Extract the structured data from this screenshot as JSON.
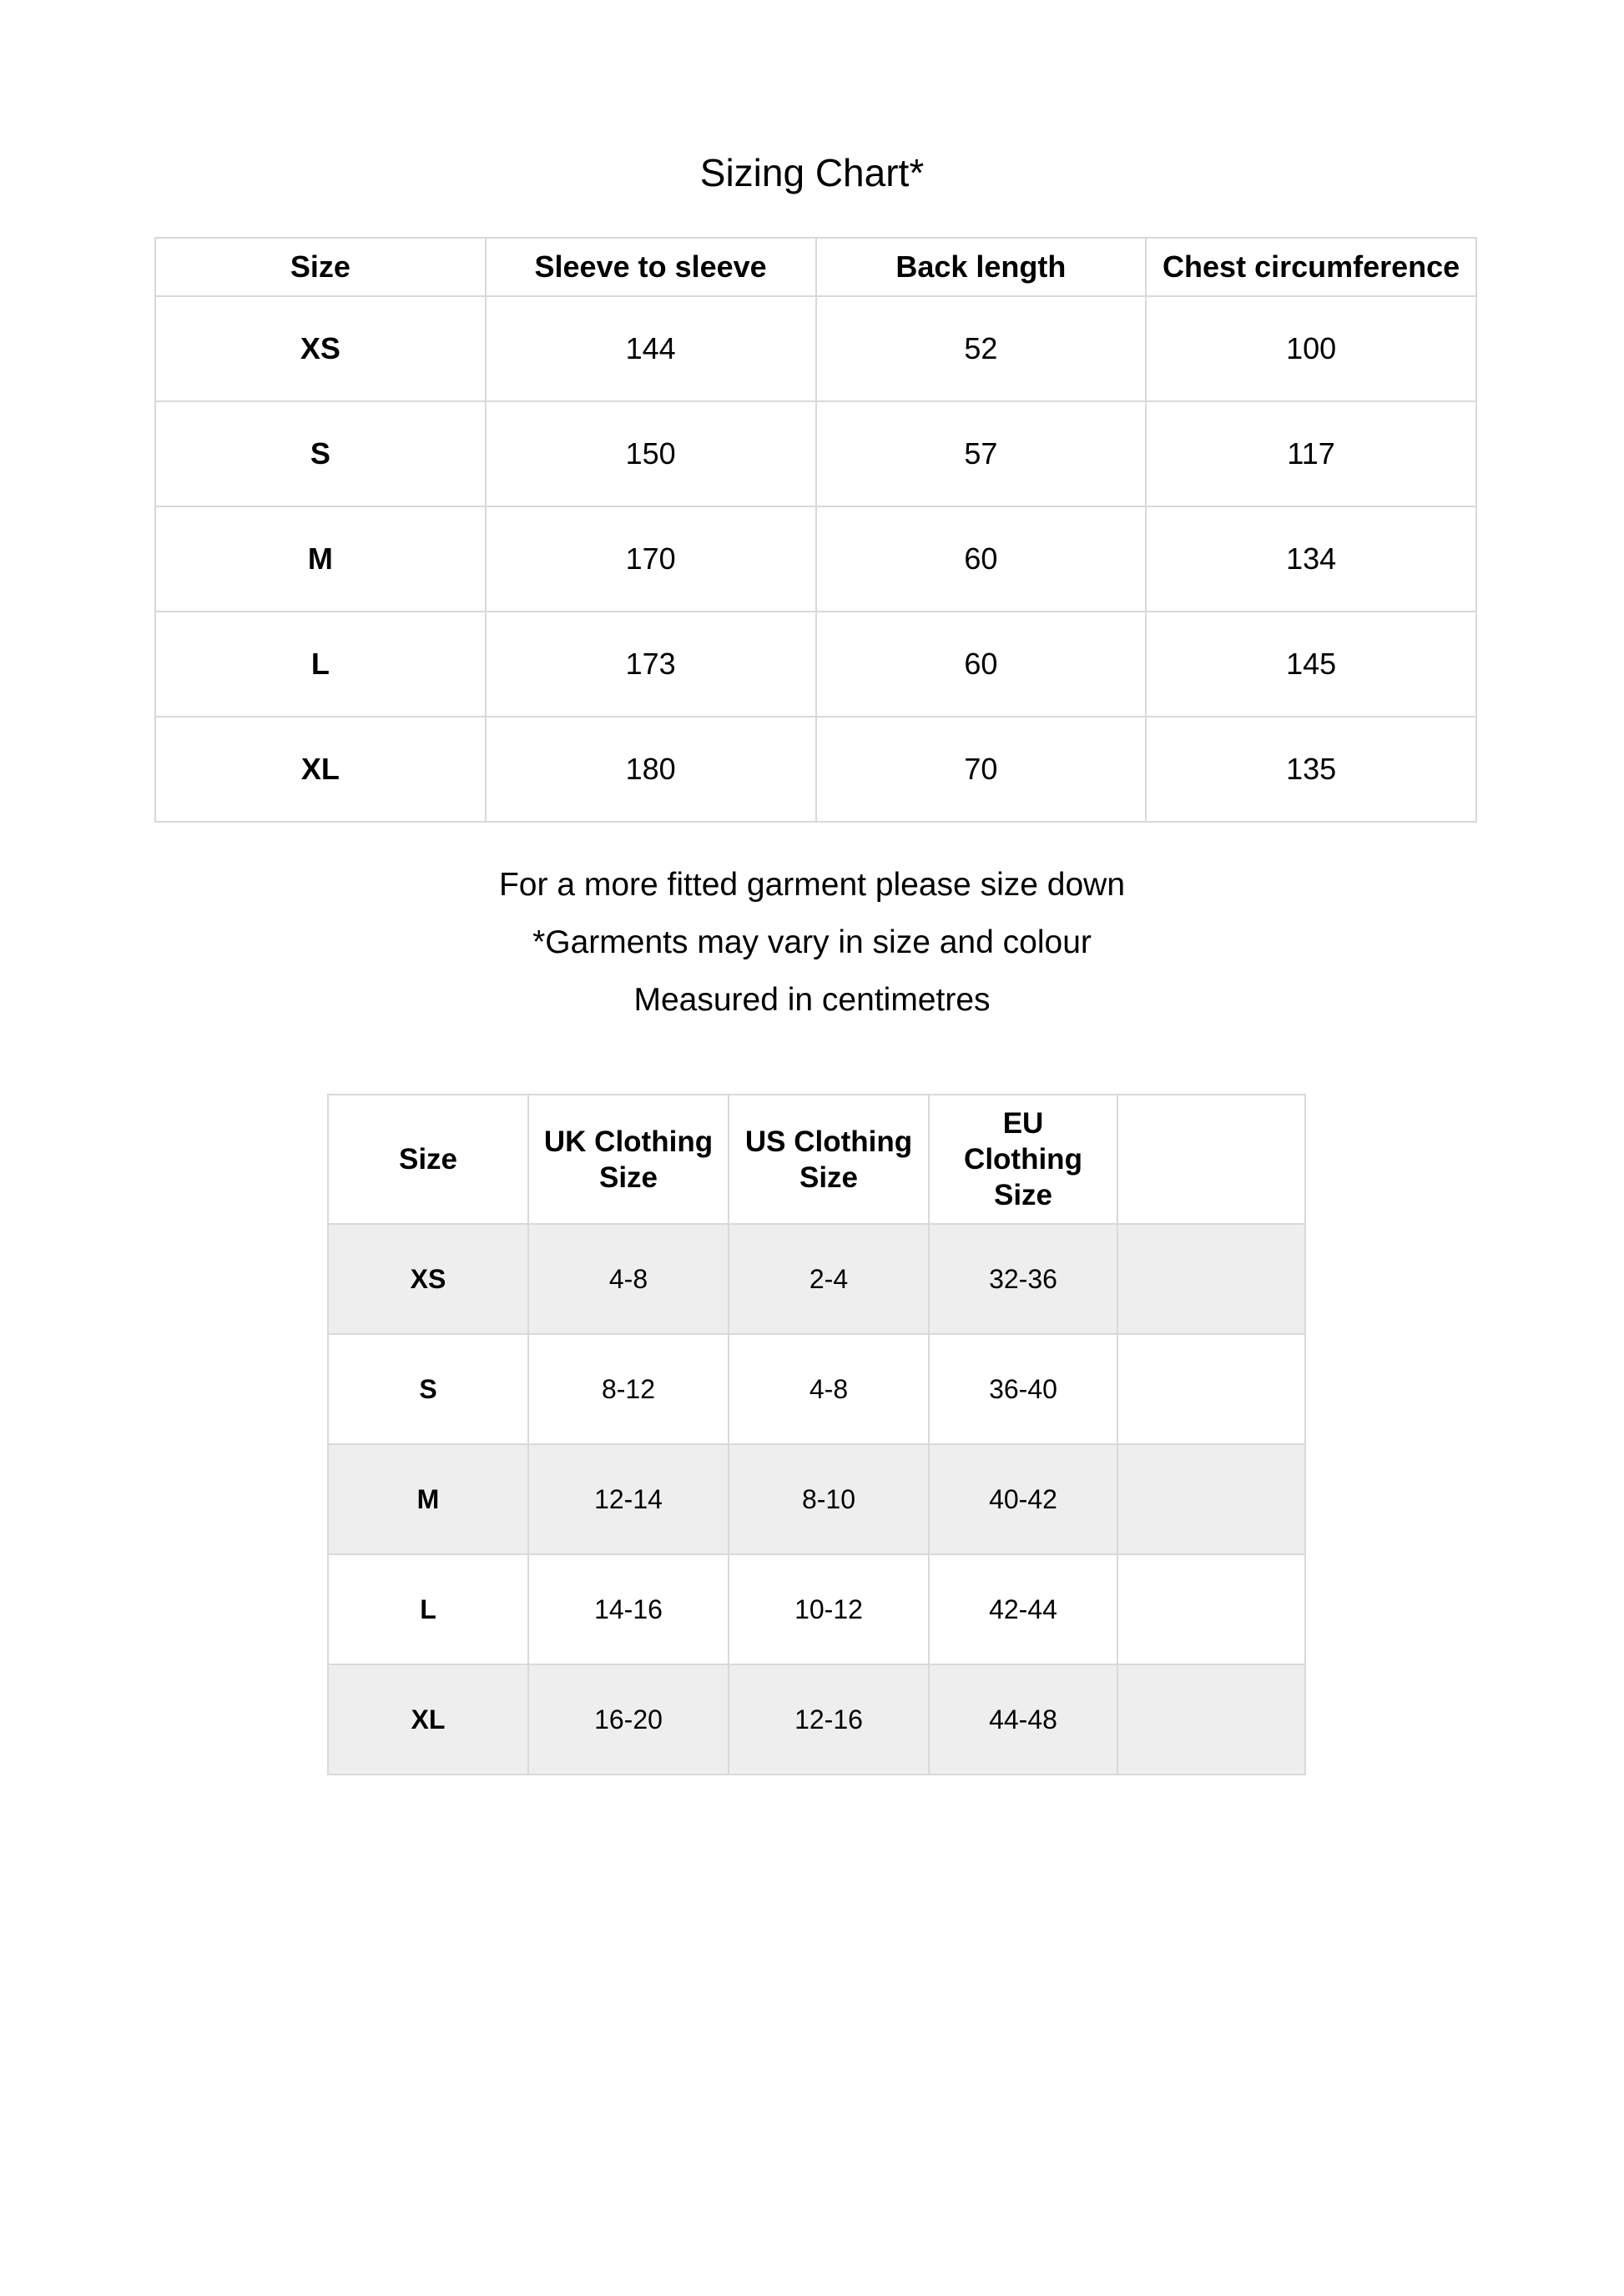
{
  "title": "Sizing Chart*",
  "measurements_table": {
    "headers": [
      "Size",
      "Sleeve to sleeve",
      "Back length",
      "Chest circumference"
    ],
    "rows": [
      [
        "XS",
        "144",
        "52",
        "100"
      ],
      [
        "S",
        "150",
        "57",
        "117"
      ],
      [
        "M",
        "170",
        "60",
        "134"
      ],
      [
        "L",
        "173",
        "60",
        "145"
      ],
      [
        "XL",
        "180",
        "70",
        "135"
      ]
    ]
  },
  "notes": [
    "For a more fitted garment please size down",
    "*Garments may vary in size and colour",
    "Measured in centimetres"
  ],
  "conversion_table": {
    "headers": [
      "Size",
      "UK Clothing Size",
      "US Clothing Size",
      "EU Clothing Size",
      ""
    ],
    "rows": [
      [
        "XS",
        "4-8",
        "2-4",
        "32-36",
        ""
      ],
      [
        "S",
        "8-12",
        "4-8",
        "36-40",
        ""
      ],
      [
        "M",
        "12-14",
        "8-10",
        "40-42",
        ""
      ],
      [
        "L",
        "14-16",
        "10-12",
        "42-44",
        ""
      ],
      [
        "XL",
        "16-20",
        "12-16",
        "44-48",
        ""
      ]
    ],
    "shaded_row_color": "#eeeeee"
  }
}
